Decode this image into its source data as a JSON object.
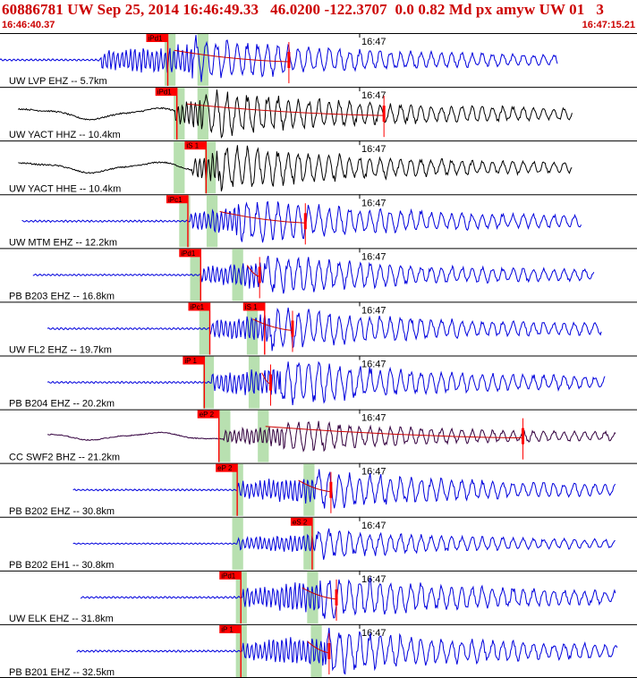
{
  "header": {
    "title": "60886781 UW Sep 25, 2014 16:46:49.33   46.0200 -122.3707  0.0 0.82 Md px amyw UW 01   3",
    "start_time": "16:46:40.37",
    "end_time": "16:47:15.21"
  },
  "colors": {
    "title": "#cc0000",
    "blue_trace": "#0000dd",
    "black_trace": "#000000",
    "mixed_trace": "#33003f",
    "pick_flag": "#ff0000",
    "window_band": "#b8e0b0",
    "coda_line": "#cc0000"
  },
  "chart_data": {
    "type": "line",
    "time_range": [
      "16:46:40.37",
      "16:47:15.21"
    ],
    "minute_marker": "16:47",
    "traces": [
      {
        "label": "UW LVP EHZ -- 5.7km",
        "color": "blue",
        "start_s": 0.0,
        "end_s": 30.5,
        "p_onset_s": 5.5,
        "s_onset_s": 10.5,
        "amp": 0.85,
        "bands_s": [
          [
            9.0,
            9.6
          ],
          [
            10.8,
            11.4
          ]
        ],
        "picks": [
          {
            "text": "iPd1",
            "t": 8.0
          }
        ],
        "coda_end_s": 15.8
      },
      {
        "label": "UW YACT HHZ -- 10.4km",
        "color": "black",
        "start_s": 1.0,
        "end_s": 31.3,
        "p_onset_s": 9.6,
        "s_onset_s": 11.2,
        "amp": 0.9,
        "bands_s": [
          [
            9.5,
            10.1
          ],
          [
            10.8,
            11.4
          ]
        ],
        "picks": [
          {
            "text": "iPd1",
            "t": 8.5
          }
        ],
        "coda_end_s": 21.0
      },
      {
        "label": "UW YACT HHE -- 10.4km",
        "color": "black",
        "start_s": 1.0,
        "end_s": 31.3,
        "p_onset_s": 10.5,
        "s_onset_s": 12.0,
        "amp": 0.85,
        "bands_s": [
          [
            9.5,
            10.1
          ],
          [
            11.2,
            11.8
          ]
        ],
        "picks": [
          {
            "text": "iS 1",
            "t": 10.1
          }
        ],
        "coda_end_s": null
      },
      {
        "label": "UW MTM EHZ -- 12.2km",
        "color": "blue",
        "start_s": 1.2,
        "end_s": 31.8,
        "p_onset_s": 10.4,
        "s_onset_s": 13.0,
        "amp": 0.85,
        "bands_s": [
          [
            9.8,
            10.4
          ],
          [
            11.3,
            11.9
          ]
        ],
        "picks": [
          {
            "text": "iPc1",
            "t": 9.1
          }
        ],
        "coda_end_s": 16.7
      },
      {
        "label": "PB B203 EHZ -- 16.8km",
        "color": "blue",
        "start_s": 1.8,
        "end_s": 32.5,
        "p_onset_s": 11.0,
        "s_onset_s": 14.5,
        "amp": 0.75,
        "bands_s": [
          [
            10.4,
            11.0
          ],
          [
            12.7,
            13.3
          ]
        ],
        "picks": [
          {
            "text": "iPd1",
            "t": 9.8
          }
        ],
        "coda_end_s": 14.2
      },
      {
        "label": "UW FL2 EHZ -- 19.7km",
        "color": "blue",
        "start_s": 2.6,
        "end_s": 32.9,
        "p_onset_s": 11.5,
        "s_onset_s": 14.8,
        "amp": 0.8,
        "bands_s": [
          [
            10.9,
            11.5
          ],
          [
            13.5,
            14.1
          ]
        ],
        "picks": [
          {
            "text": "iPc1",
            "t": 10.3
          },
          {
            "text": "iS 1",
            "t": 13.3
          }
        ],
        "coda_end_s": 16.0
      },
      {
        "label": "PB B204 EHZ -- 20.2km",
        "color": "blue",
        "start_s": 2.6,
        "end_s": 33.1,
        "p_onset_s": 11.6,
        "s_onset_s": 15.3,
        "amp": 0.85,
        "bands_s": [
          [
            11.1,
            11.7
          ],
          [
            13.6,
            14.2
          ]
        ],
        "picks": [
          {
            "text": "iP 1",
            "t": 10.0
          }
        ],
        "coda_end_s": 14.8
      },
      {
        "label": "CC SWF2 BHZ -- 21.2km",
        "color": "mixed",
        "start_s": 2.6,
        "end_s": 33.7,
        "p_onset_s": 12.2,
        "s_onset_s": 15.5,
        "amp": 0.6,
        "bands_s": [
          [
            12.0,
            12.6
          ],
          [
            14.1,
            14.7
          ]
        ],
        "picks": [
          {
            "text": "eP 2",
            "t": 10.8
          }
        ],
        "coda_end_s": 28.6
      },
      {
        "label": "PB B202 EHZ -- 30.8km",
        "color": "blue",
        "start_s": 4.0,
        "end_s": 33.7,
        "p_onset_s": 13.0,
        "s_onset_s": 17.3,
        "amp": 0.75,
        "bands_s": [
          [
            12.7,
            13.3
          ],
          [
            16.6,
            17.2
          ]
        ],
        "picks": [
          {
            "text": "eP 2",
            "t": 11.8
          }
        ],
        "coda_end_s": 18.1
      },
      {
        "label": "PB B202 EH1 -- 30.8km",
        "color": "blue",
        "start_s": 4.0,
        "end_s": 33.7,
        "p_onset_s": 13.0,
        "s_onset_s": 17.4,
        "amp": 0.55,
        "bands_s": [
          [
            12.7,
            13.3
          ],
          [
            16.6,
            17.2
          ]
        ],
        "picks": [
          {
            "text": "eS 2",
            "t": 15.9
          }
        ],
        "coda_end_s": null
      },
      {
        "label": "UW ELK EHZ -- 31.8km",
        "color": "blue",
        "start_s": 4.4,
        "end_s": 33.7,
        "p_onset_s": 13.3,
        "s_onset_s": 17.5,
        "amp": 0.85,
        "bands_s": [
          [
            12.9,
            13.5
          ],
          [
            16.8,
            17.4
          ]
        ],
        "picks": [
          {
            "text": "iPd1",
            "t": 12.0
          }
        ],
        "coda_end_s": 18.4
      },
      {
        "label": "PB B201 EHZ -- 32.5km",
        "color": "blue",
        "start_s": 4.2,
        "end_s": 33.8,
        "p_onset_s": 13.3,
        "s_onset_s": 17.8,
        "amp": 0.85,
        "bands_s": [
          [
            12.9,
            13.5
          ],
          [
            17.0,
            17.6
          ]
        ],
        "picks": [
          {
            "text": "iP 1",
            "t": 12.0
          }
        ],
        "coda_end_s": 18.0
      }
    ]
  }
}
